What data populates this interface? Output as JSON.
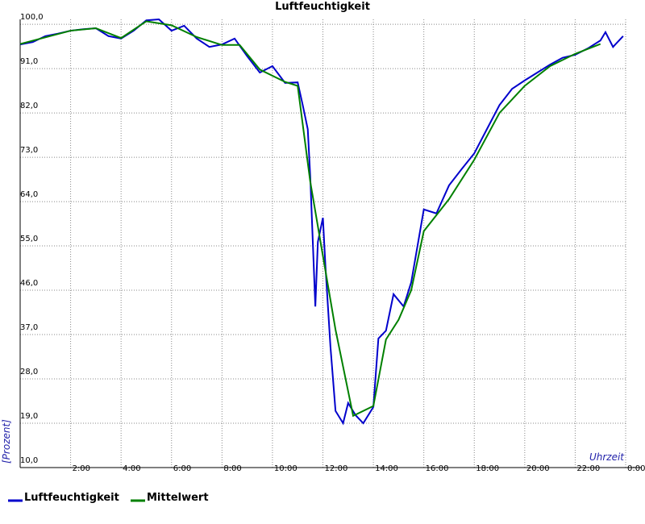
{
  "chart_data": {
    "type": "line",
    "title": "Luftfeuchtigkeit",
    "x_label": "Uhrzeit",
    "y_label": "[Prozent]",
    "xlim": [
      0,
      24
    ],
    "ylim": [
      10,
      101
    ],
    "xticks": [
      {
        "value": 2,
        "label": "2:00"
      },
      {
        "value": 4,
        "label": "4:00"
      },
      {
        "value": 6,
        "label": "6:00"
      },
      {
        "value": 8,
        "label": "8:00"
      },
      {
        "value": 10,
        "label": "10:00"
      },
      {
        "value": 12,
        "label": "12:00"
      },
      {
        "value": 14,
        "label": "14:00"
      },
      {
        "value": 16,
        "label": "16:00"
      },
      {
        "value": 18,
        "label": "18:00"
      },
      {
        "value": 20,
        "label": "20:00"
      },
      {
        "value": 22,
        "label": "22:00"
      },
      {
        "value": 24,
        "label": "0:00"
      }
    ],
    "yticks": [
      {
        "value": 10,
        "label": "10,0"
      },
      {
        "value": 19,
        "label": "19,0"
      },
      {
        "value": 28,
        "label": "28,0"
      },
      {
        "value": 37,
        "label": "37,0"
      },
      {
        "value": 46,
        "label": "46,0"
      },
      {
        "value": 55,
        "label": "55,0"
      },
      {
        "value": 64,
        "label": "64,0"
      },
      {
        "value": 73,
        "label": "73,0"
      },
      {
        "value": 82,
        "label": "82,0"
      },
      {
        "value": 91,
        "label": "91,0"
      },
      {
        "value": 100,
        "label": "100,0"
      }
    ],
    "grid": true,
    "series": [
      {
        "name": "Luftfeuchtigkeit",
        "color": "#0000cc",
        "x": [
          0,
          0.5,
          1,
          1.5,
          2,
          2.5,
          3,
          3.5,
          4,
          4.5,
          5,
          5.5,
          6,
          6.25,
          6.5,
          7,
          7.5,
          8,
          8.5,
          9,
          9.5,
          10,
          10.5,
          11,
          11.2,
          11.4,
          11.5,
          11.7,
          11.8,
          12,
          12.1,
          12.3,
          12.5,
          12.8,
          13,
          13.3,
          13.6,
          14,
          14.2,
          14.5,
          14.8,
          15.2,
          15.5,
          16,
          16.5,
          17,
          17.5,
          18,
          18.5,
          19,
          19.5,
          20,
          20.5,
          21,
          21.5,
          22,
          22.5,
          23,
          23.2,
          23.5,
          23.9
        ],
        "values": [
          95.9,
          96.4,
          97.6,
          98.1,
          98.7,
          99.0,
          99.2,
          97.6,
          97.1,
          98.7,
          100.8,
          101.0,
          98.7,
          99.2,
          99.7,
          97.1,
          95.4,
          95.9,
          97.1,
          93.5,
          90.2,
          91.5,
          88.1,
          88.2,
          83.6,
          78.7,
          68.9,
          42.7,
          55.8,
          60.7,
          50.9,
          34.5,
          21.5,
          19.0,
          23.1,
          20.6,
          19.0,
          22.3,
          36.2,
          37.8,
          45.2,
          42.7,
          47.6,
          62.4,
          61.6,
          67.3,
          70.6,
          73.8,
          78.7,
          83.6,
          86.9,
          88.6,
          90.2,
          91.8,
          93.2,
          93.8,
          95.1,
          96.7,
          98.4,
          95.4,
          97.6
        ]
      },
      {
        "name": "Mittelwert",
        "color": "#008000",
        "x": [
          0,
          2,
          3,
          4,
          5,
          6,
          7,
          8,
          8.7,
          9.5,
          10.5,
          11,
          11.5,
          12,
          12.5,
          13.2,
          14,
          14.5,
          15,
          15.5,
          16,
          17,
          18,
          19,
          20,
          21,
          22,
          23
        ],
        "values": [
          96,
          98.7,
          99.2,
          97.2,
          100.6,
          99.8,
          97.4,
          95.8,
          95.8,
          90.8,
          88.3,
          87.5,
          68,
          53,
          38,
          20.5,
          22.5,
          36,
          40,
          46,
          58,
          64.5,
          72.5,
          82,
          87.5,
          91.5,
          94,
          96
        ]
      }
    ]
  }
}
